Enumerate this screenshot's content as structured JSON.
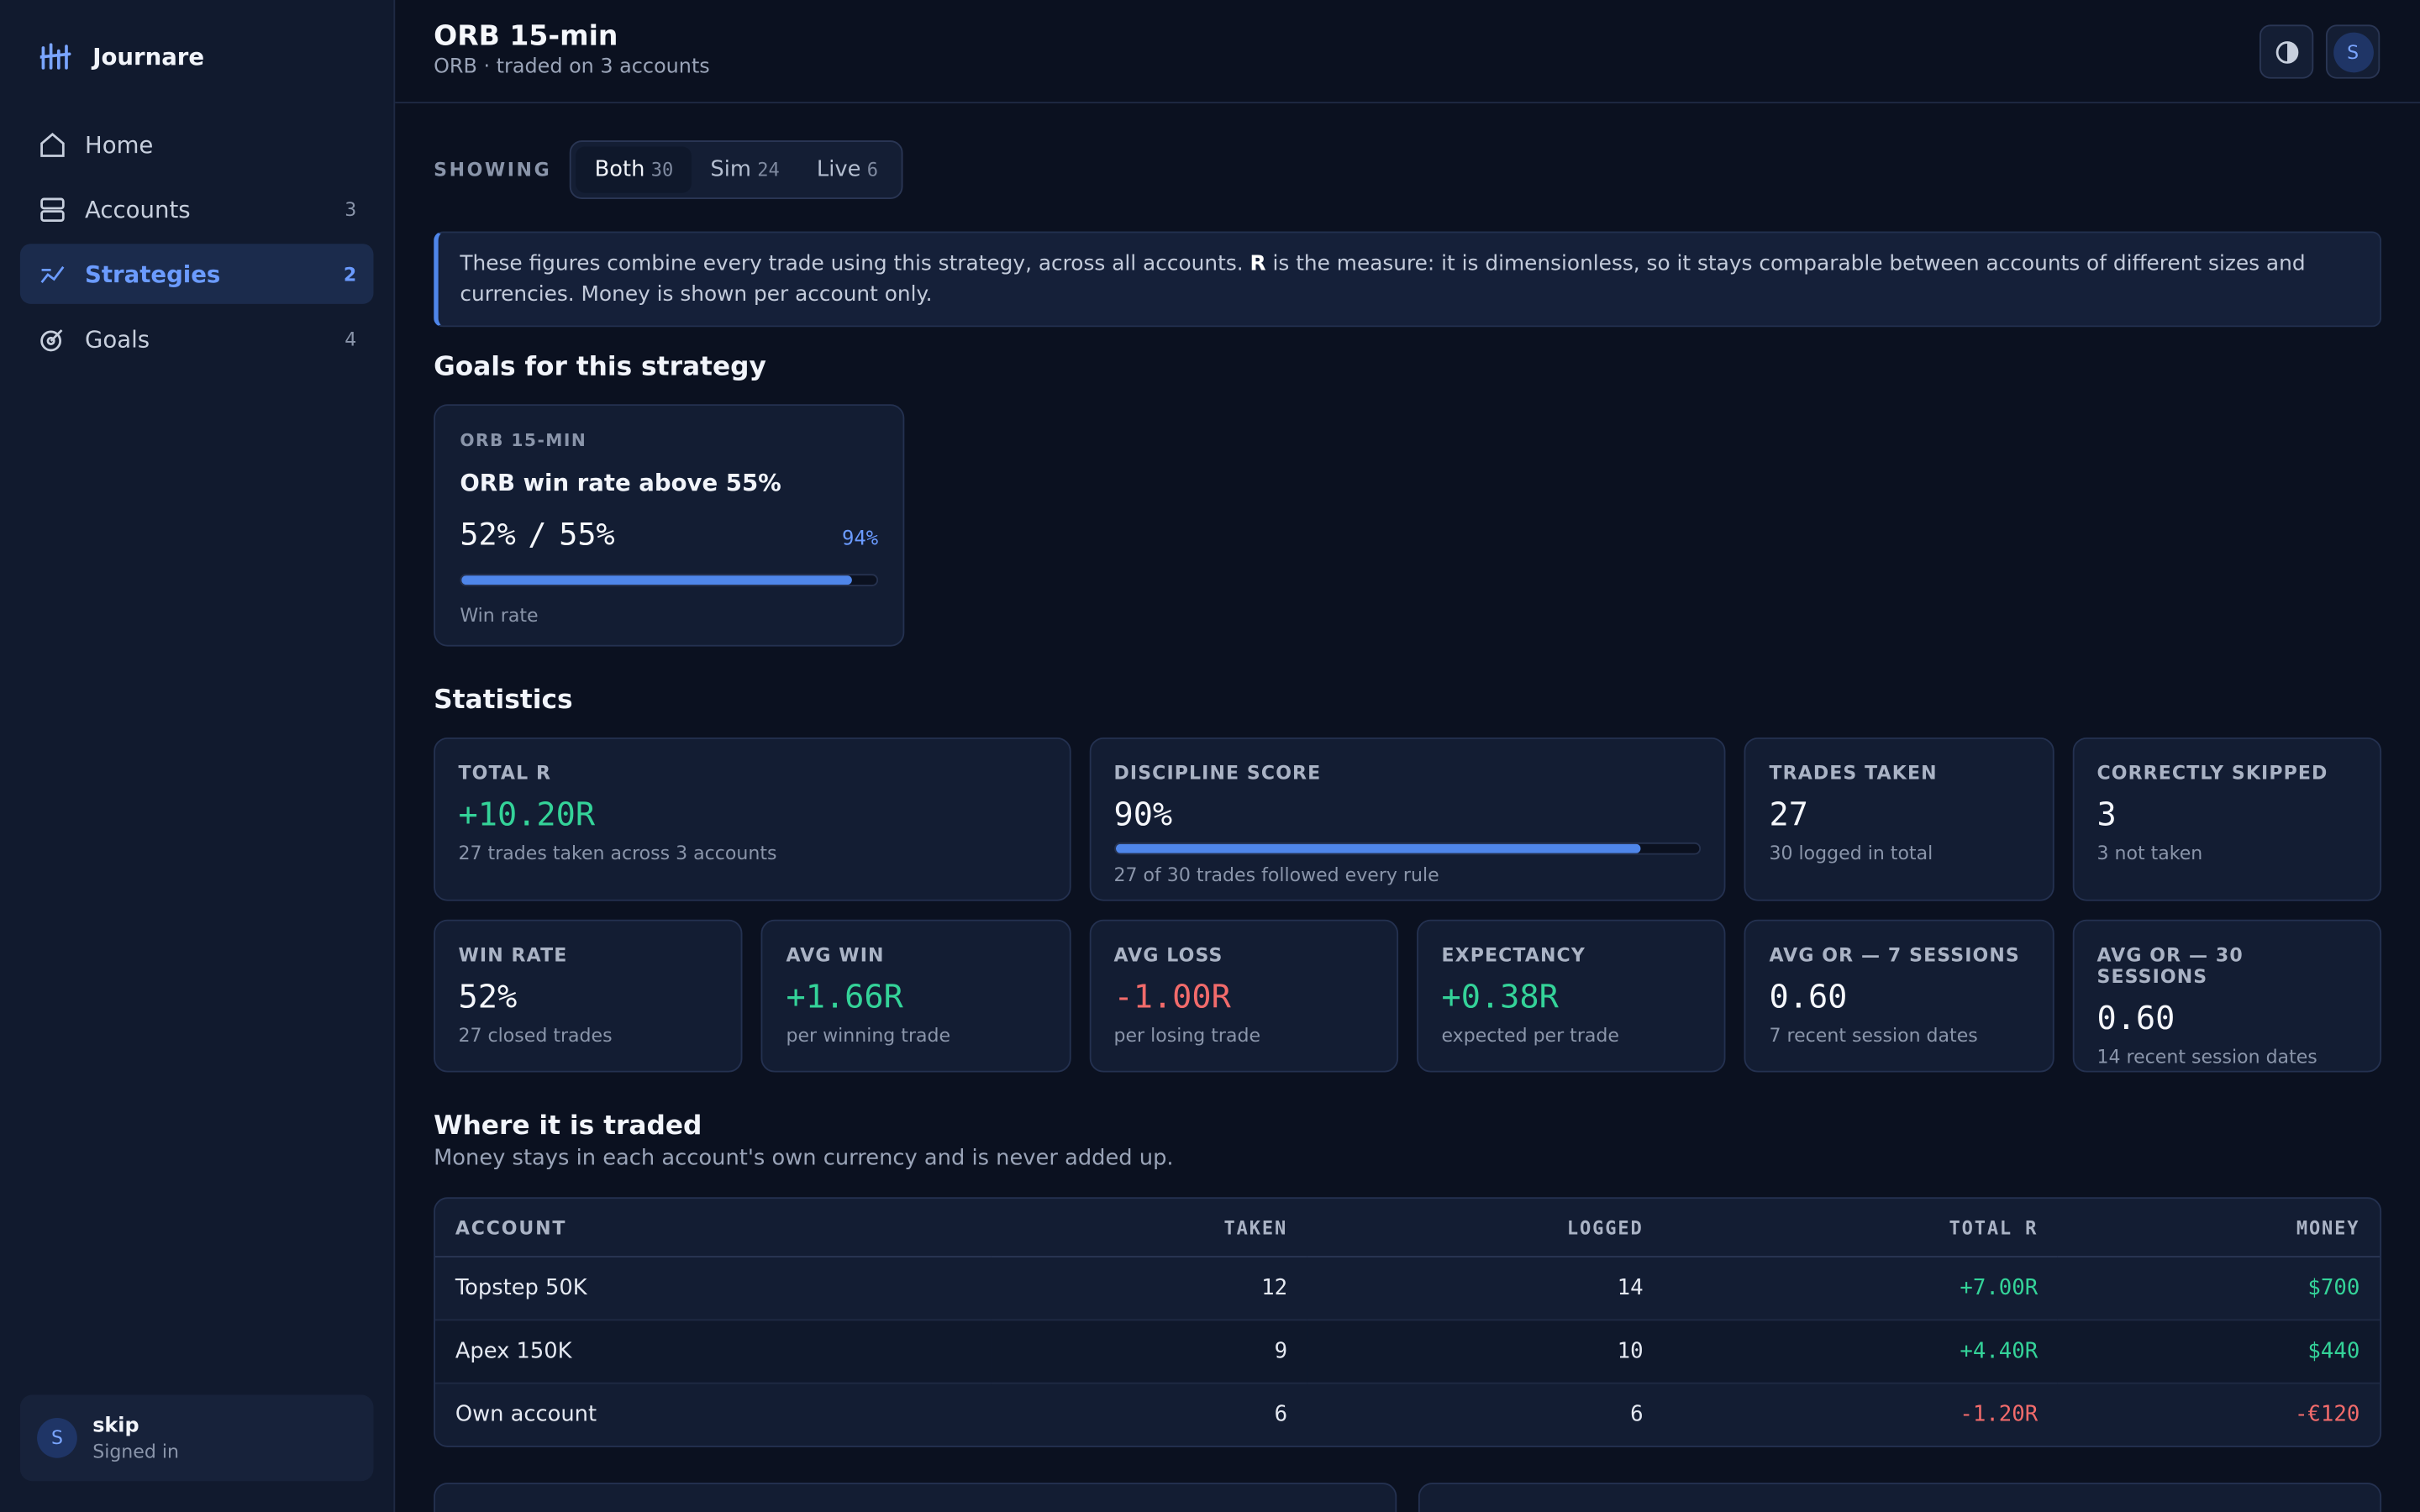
{
  "brand": "Journare",
  "nav": [
    {
      "label": "Home"
    },
    {
      "label": "Accounts",
      "count": 3
    },
    {
      "label": "Strategies",
      "count": 2,
      "active": true
    },
    {
      "label": "Goals",
      "count": 4
    }
  ],
  "user": {
    "avatar": "S",
    "name": "skip",
    "status": "Signed in"
  },
  "header": {
    "title": "ORB 15-min",
    "subtitle": "ORB · traded on 3 accounts",
    "avatar": "S"
  },
  "filter": {
    "label": "SHOWING",
    "options": [
      {
        "label": "Both",
        "count": 30,
        "active": true
      },
      {
        "label": "Sim",
        "count": 24
      },
      {
        "label": "Live",
        "count": 6
      }
    ]
  },
  "info": {
    "before": "These figures combine every trade using this strategy, across all accounts. ",
    "bold": "R",
    "after": " is the measure: it is dimensionless, so it stays comparable between accounts of different sizes and currencies. Money is shown per account only."
  },
  "goals": {
    "heading": "Goals for this strategy",
    "cards": [
      {
        "tag": "ORB 15-MIN",
        "title": "ORB win rate above 55%",
        "current": "52%",
        "separator": "/",
        "target": "55%",
        "progress": "94%",
        "metric": "Win rate"
      }
    ]
  },
  "statistics": {
    "heading": "Statistics",
    "cards": [
      {
        "label": "TOTAL R",
        "value": "+10.20R",
        "note": "27 trades taken across 3 accounts",
        "tone": "positive",
        "span": 2
      },
      {
        "label": "DISCIPLINE SCORE",
        "value": "90%",
        "note": "27 of 30 trades followed every rule",
        "tone": "neutral",
        "span": 2,
        "bar": true
      },
      {
        "label": "TRADES TAKEN",
        "value": 27,
        "note": "30 logged in total",
        "tone": "neutral",
        "span": 1
      },
      {
        "label": "CORRECTLY SKIPPED",
        "value": 3,
        "note": "3 not taken",
        "tone": "neutral",
        "span": 1
      },
      {
        "label": "WIN RATE",
        "value": "52%",
        "note": "27 closed trades",
        "tone": "neutral",
        "span": 1
      },
      {
        "label": "AVG WIN",
        "value": "+1.66R",
        "note": "per winning trade",
        "tone": "positive",
        "span": 1
      },
      {
        "label": "AVG LOSS",
        "value": "-1.00R",
        "note": "per losing trade",
        "tone": "negative",
        "span": 1
      },
      {
        "label": "EXPECTANCY",
        "value": "+0.38R",
        "note": "expected per trade",
        "tone": "positive",
        "span": 1
      },
      {
        "label": "AVG OR — 7 SESSIONS",
        "value": "0.60",
        "note": "7 recent session dates",
        "tone": "neutral",
        "span": 1
      },
      {
        "label": "AVG OR — 30 SESSIONS",
        "value": "0.60",
        "note": "14 recent session dates",
        "tone": "neutral",
        "span": 1
      }
    ]
  },
  "traded": {
    "heading": "Where it is traded",
    "subtitle": "Money stays in each account's own currency and is never added up.",
    "table": {
      "columns": [
        "ACCOUNT",
        "TAKEN",
        "LOGGED",
        "TOTAL R",
        "MONEY"
      ],
      "rows": [
        [
          "Topstep 50K",
          12,
          14,
          "+7.00R",
          "$700"
        ],
        [
          "Apex 150K",
          9,
          10,
          "+4.40R",
          "$440"
        ],
        [
          "Own account",
          6,
          6,
          "-1.20R",
          "-€120"
        ]
      ]
    }
  }
}
